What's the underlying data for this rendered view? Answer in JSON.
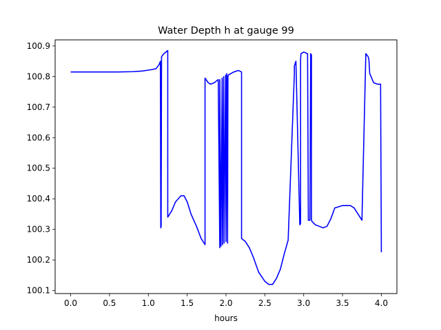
{
  "chart_data": {
    "type": "line",
    "title": "Water Depth h at gauge 99",
    "xlabel": "hours",
    "ylabel": "",
    "xlim": [
      -0.2,
      4.2
    ],
    "ylim": [
      100.09,
      100.92
    ],
    "xticks": [
      0.0,
      0.5,
      1.0,
      1.5,
      2.0,
      2.5,
      3.0,
      3.5,
      4.0
    ],
    "xtick_labels": [
      "0.0",
      "0.5",
      "1.0",
      "1.5",
      "2.0",
      "2.5",
      "3.0",
      "3.5",
      "4.0"
    ],
    "yticks": [
      100.1,
      100.2,
      100.3,
      100.4,
      100.5,
      100.6,
      100.7,
      100.8,
      100.9
    ],
    "ytick_labels": [
      "100.1",
      "100.2",
      "100.3",
      "100.4",
      "100.5",
      "100.6",
      "100.7",
      "100.8",
      "100.9"
    ],
    "grid": false,
    "series": [
      {
        "color": "#0000ff",
        "x": [
          0.0,
          0.3,
          0.6,
          0.8,
          0.92,
          1.0,
          1.05,
          1.1,
          1.14,
          1.155,
          1.16,
          1.165,
          1.17,
          1.2,
          1.25,
          1.25,
          1.3,
          1.35,
          1.42,
          1.46,
          1.5,
          1.55,
          1.62,
          1.68,
          1.73,
          1.73,
          1.77,
          1.8,
          1.85,
          1.9,
          1.92,
          1.92,
          1.935,
          1.95,
          1.955,
          1.97,
          1.975,
          1.995,
          2.0,
          2.01,
          2.02,
          2.025,
          2.03,
          2.1,
          2.16,
          2.2,
          2.2,
          2.25,
          2.3,
          2.35,
          2.42,
          2.5,
          2.55,
          2.6,
          2.65,
          2.7,
          2.75,
          2.8,
          2.88,
          2.88,
          2.9,
          2.95,
          2.96,
          2.96,
          2.965,
          3.0,
          3.05,
          3.06,
          3.07,
          3.08,
          3.09,
          3.1,
          3.1,
          3.11,
          3.15,
          3.2,
          3.25,
          3.3,
          3.35,
          3.4,
          3.5,
          3.6,
          3.65,
          3.7,
          3.75,
          3.8,
          3.83,
          3.84,
          3.85,
          3.9,
          3.95,
          3.99,
          3.99,
          4.0
        ],
        "y": [
          100.815,
          100.815,
          100.815,
          100.816,
          100.818,
          100.821,
          100.823,
          100.826,
          100.84,
          100.85,
          100.305,
          100.31,
          100.865,
          100.875,
          100.885,
          100.34,
          100.36,
          100.39,
          100.41,
          100.41,
          100.39,
          100.35,
          100.31,
          100.27,
          100.25,
          100.795,
          100.78,
          100.775,
          100.78,
          100.79,
          100.24,
          100.79,
          100.245,
          100.795,
          100.25,
          100.8,
          100.255,
          100.805,
          100.26,
          100.81,
          100.255,
          100.8,
          100.805,
          100.815,
          100.82,
          100.815,
          100.27,
          100.26,
          100.24,
          100.21,
          100.16,
          100.13,
          100.12,
          100.12,
          100.14,
          100.17,
          100.22,
          100.265,
          100.81,
          100.835,
          100.85,
          100.315,
          100.32,
          100.855,
          100.875,
          100.88,
          100.875,
          100.33,
          100.33,
          100.33,
          100.875,
          100.87,
          100.33,
          100.325,
          100.315,
          100.31,
          100.305,
          100.31,
          100.335,
          100.37,
          100.378,
          100.378,
          100.37,
          100.35,
          100.33,
          100.875,
          100.865,
          100.855,
          100.81,
          100.78,
          100.775,
          100.775,
          100.775,
          100.225
        ]
      }
    ]
  }
}
